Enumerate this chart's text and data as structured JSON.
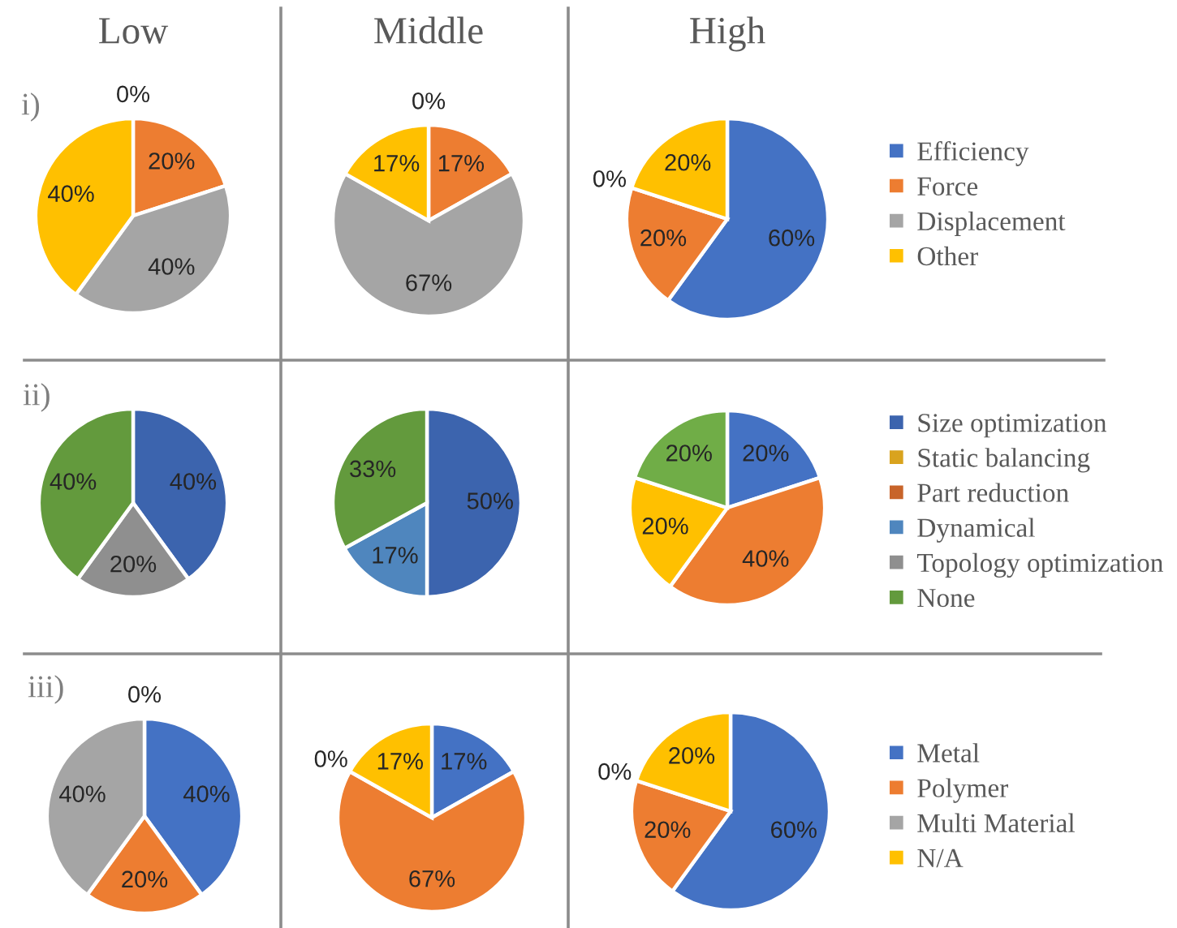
{
  "chart_data": [
    {
      "type": "pie",
      "title": "Low",
      "annotations": [
        "i)"
      ],
      "categories": [
        "Efficiency",
        "Force",
        "Displacement",
        "Other"
      ],
      "values": [
        0,
        20,
        40,
        40
      ],
      "colors": [
        "#4472c4",
        "#ed7d31",
        "#a5a5a5",
        "#ffc000"
      ],
      "value_labels": [
        "0%",
        "20%",
        "40%",
        "40%"
      ],
      "legend": "right"
    },
    {
      "type": "pie",
      "title": "Middle",
      "categories": [
        null,
        null,
        null,
        null
      ],
      "values": [
        0,
        17,
        67,
        17
      ],
      "colors": [
        "#4472c4",
        "#ed7d31",
        "#a5a5a5",
        "#ffc000"
      ],
      "value_labels": [
        "0%",
        "17%",
        "67%",
        "17%"
      ]
    },
    {
      "type": "pie",
      "title": "High",
      "categories": [
        null,
        null,
        null,
        null
      ],
      "values": [
        60,
        20,
        0,
        20
      ],
      "colors": [
        "#4472c4",
        "#ed7d31",
        "#a5a5a5",
        "#ffc000"
      ],
      "value_labels": [
        "60%",
        "20%",
        "0%",
        "20%"
      ]
    },
    {
      "type": "pie",
      "annotations": [
        "ii)"
      ],
      "categories": [
        "Size optimization",
        "Static balancing",
        "Part reduction",
        "Dynamical",
        "Topology optimization",
        "None"
      ],
      "values": [
        40,
        0,
        0,
        0,
        20,
        40
      ],
      "colors": [
        "#3c64ae",
        "#d9a31e",
        "#c8642a",
        "#4f86be",
        "#8f8f8f",
        "#639a3d"
      ],
      "value_labels": [
        "40%",
        null,
        null,
        null,
        "20%",
        "40%"
      ],
      "legend": "right"
    },
    {
      "type": "pie",
      "categories": [
        null,
        null,
        null
      ],
      "values": [
        50,
        17,
        33
      ],
      "colors": [
        "#3c64ae",
        "#4f86be",
        "#639a3d"
      ],
      "value_labels": [
        "50%",
        "17%",
        "33%"
      ]
    },
    {
      "type": "pie",
      "categories": [
        null,
        null,
        null,
        null
      ],
      "values": [
        20,
        40,
        20,
        20
      ],
      "colors": [
        "#4472c4",
        "#ed7d31",
        "#ffc000",
        "#70ad47"
      ],
      "value_labels": [
        "20%",
        "40%",
        "20%",
        "20%"
      ]
    },
    {
      "type": "pie",
      "annotations": [
        "iii)"
      ],
      "categories": [
        "Metal",
        "Polymer",
        "Multi Material",
        "N/A"
      ],
      "values": [
        40,
        20,
        40,
        0
      ],
      "colors": [
        "#4472c4",
        "#ed7d31",
        "#a5a5a5",
        "#ffc000"
      ],
      "value_labels": [
        "40%",
        "20%",
        "40%",
        "0%"
      ],
      "legend": "right"
    },
    {
      "type": "pie",
      "categories": [
        null,
        null,
        null,
        null
      ],
      "values": [
        17,
        67,
        0,
        17
      ],
      "colors": [
        "#4472c4",
        "#ed7d31",
        "#a5a5a5",
        "#ffc000"
      ],
      "value_labels": [
        "17%",
        "67%",
        "0%",
        "17%"
      ]
    },
    {
      "type": "pie",
      "categories": [
        null,
        null,
        null,
        null
      ],
      "values": [
        60,
        20,
        0,
        20
      ],
      "colors": [
        "#4472c4",
        "#ed7d31",
        "#a5a5a5",
        "#ffc000"
      ],
      "value_labels": [
        "60%",
        "20%",
        "0%",
        "20%"
      ]
    }
  ]
}
